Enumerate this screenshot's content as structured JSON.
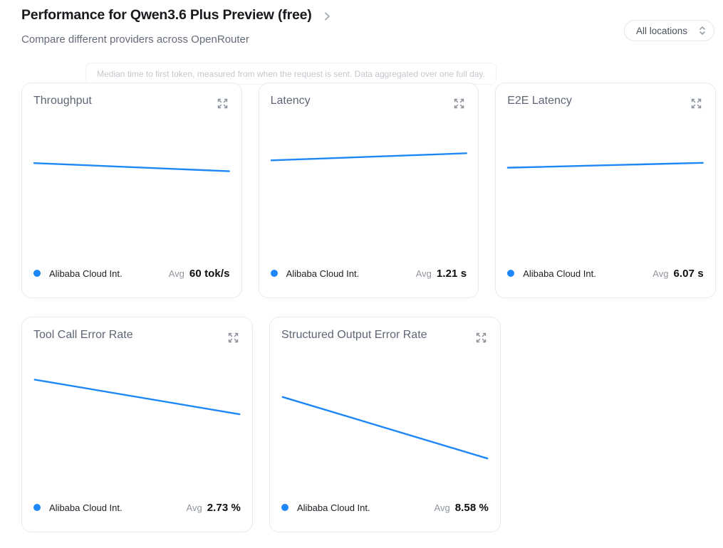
{
  "header": {
    "title": "Performance for Qwen3.6 Plus Preview (free)",
    "subtitle": "Compare different providers across OpenRouter",
    "location_filter": {
      "value": "All locations"
    }
  },
  "banner": {
    "text": "Median time to first token, measured from when the request is sent. Data aggregated over one full day."
  },
  "colors": {
    "accent": "#1d87f7",
    "card_border": "#e8eaed",
    "muted_text": "#646c78"
  },
  "chart_data": [
    {
      "type": "line",
      "title": "Throughput",
      "series": [
        {
          "name": "Alibaba Cloud Int.",
          "values": [
            62,
            58
          ]
        }
      ],
      "ylim": [
        12,
        82
      ],
      "unit": "tok/s",
      "avg_label": "Avg",
      "avg_value": "60 tok/s",
      "grid": false,
      "axes_hidden": true,
      "legend_position": "bottom"
    },
    {
      "type": "line",
      "title": "Latency",
      "series": [
        {
          "name": "Alibaba Cloud Int.",
          "values": [
            1.18,
            1.24
          ]
        }
      ],
      "ylim": [
        0.3,
        1.5
      ],
      "unit": "s",
      "avg_label": "Avg",
      "avg_value": "1.21 s",
      "grid": false,
      "axes_hidden": true,
      "legend_position": "bottom"
    },
    {
      "type": "line",
      "title": "E2E Latency",
      "series": [
        {
          "name": "Alibaba Cloud Int.",
          "values": [
            6.0,
            6.15
          ]
        }
      ],
      "ylim": [
        3,
        7.4
      ],
      "unit": "s",
      "avg_label": "Avg",
      "avg_value": "6.07 s",
      "grid": false,
      "axes_hidden": true,
      "legend_position": "bottom"
    },
    {
      "type": "line",
      "title": "Tool Call Error Rate",
      "series": [
        {
          "name": "Alibaba Cloud Int.",
          "values": [
            3.2,
            2.3
          ]
        }
      ],
      "ylim": [
        0.1,
        3.8
      ],
      "unit": "%",
      "avg_label": "Avg",
      "avg_value": "2.73 %",
      "grid": false,
      "axes_hidden": true,
      "legend_position": "bottom"
    },
    {
      "type": "line",
      "title": "Structured Output Error Rate",
      "series": [
        {
          "name": "Alibaba Cloud Int.",
          "values": [
            10.5,
            6.7
          ]
        }
      ],
      "ylim": [
        4.2,
        13
      ],
      "unit": "%",
      "avg_label": "Avg",
      "avg_value": "8.58 %",
      "grid": false,
      "axes_hidden": true,
      "legend_position": "bottom"
    }
  ]
}
